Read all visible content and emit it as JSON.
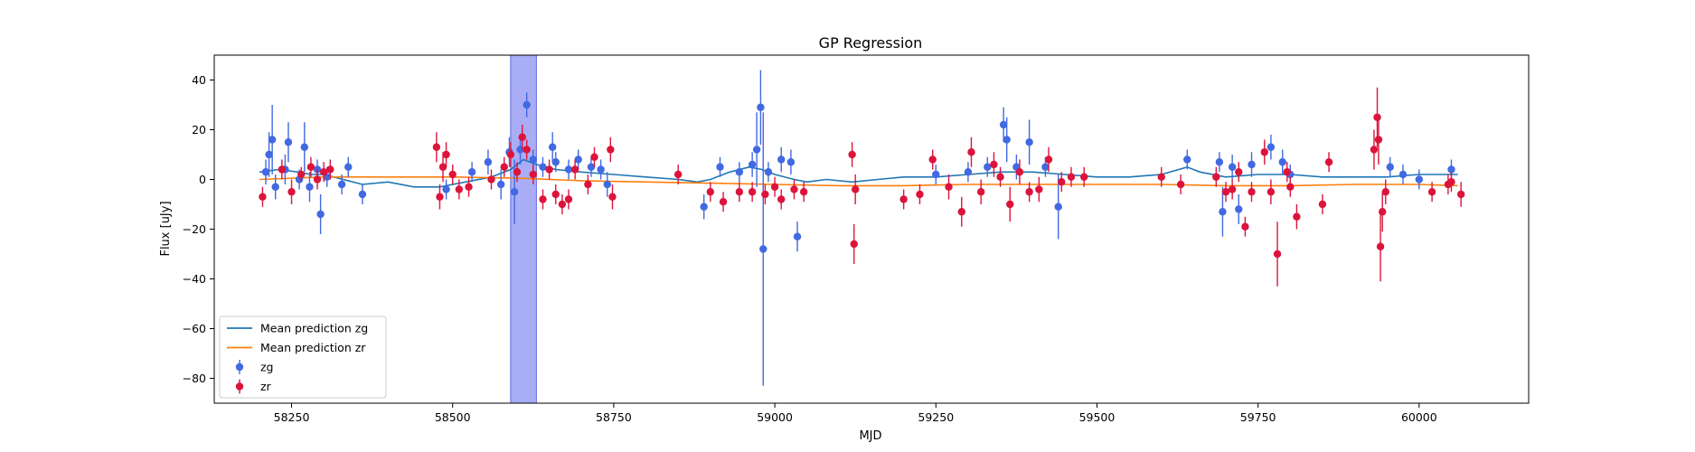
{
  "chart_data": {
    "type": "scatter",
    "title": "GP Regression",
    "xlabel": "MJD",
    "ylabel": "Flux [uJy]",
    "xlim": [
      58130,
      60170
    ],
    "ylim": [
      -90,
      50
    ],
    "x_ticks": [
      58250,
      58500,
      58750,
      59000,
      59250,
      59500,
      59750,
      60000
    ],
    "x_tick_labels": [
      "58250",
      "58500",
      "58750",
      "59000",
      "59250",
      "59500",
      "59750",
      "60000"
    ],
    "y_ticks": [
      40,
      20,
      0,
      -20,
      -40,
      -60,
      -80
    ],
    "y_tick_labels": [
      "40",
      "20",
      "0",
      "−20",
      "−40",
      "−60",
      "−80"
    ],
    "grid": false,
    "legend_position": "lower-left",
    "highlight_span": {
      "x0": 58590,
      "x1": 58630,
      "color": "#a5a9f5"
    },
    "lines": [
      {
        "name": "Mean prediction zg",
        "color": "#1f77b4",
        "x": [
          58200,
          58230,
          58260,
          58280,
          58300,
          58330,
          58360,
          58400,
          58440,
          58480,
          58520,
          58560,
          58590,
          58610,
          58630,
          58660,
          58700,
          58750,
          58800,
          58850,
          58880,
          58900,
          58930,
          58960,
          58980,
          59000,
          59030,
          59050,
          59080,
          59120,
          59160,
          59200,
          59250,
          59300,
          59350,
          59400,
          59450,
          59500,
          59550,
          59600,
          59640,
          59660,
          59700,
          59750,
          59800,
          59850,
          59900,
          59950,
          60000,
          60060
        ],
        "y": [
          3,
          4,
          3,
          2,
          2,
          0,
          -2,
          -1,
          -3,
          -3,
          -1,
          1,
          4,
          8,
          6,
          4,
          3,
          2,
          1,
          0,
          -1,
          0,
          3,
          5,
          4,
          2,
          0,
          -1,
          0,
          -1,
          0,
          1,
          1,
          2,
          3,
          3,
          2,
          1,
          1,
          2,
          5,
          3,
          1,
          2,
          2,
          1,
          1,
          1,
          2,
          2
        ]
      },
      {
        "name": "Mean prediction zr",
        "color": "#ff7f0e",
        "x": [
          58200,
          58300,
          58400,
          58500,
          58600,
          58700,
          58800,
          58900,
          59000,
          59100,
          59200,
          59300,
          59400,
          59500,
          59600,
          59700,
          59800,
          59900,
          60000,
          60060
        ],
        "y": [
          0,
          1,
          1,
          1,
          0.5,
          -0.5,
          -1,
          -1.5,
          -2,
          -2.5,
          -2.5,
          -2,
          -2,
          -2,
          -2,
          -2.5,
          -2.5,
          -2,
          -2,
          -2.5
        ]
      }
    ],
    "series": [
      {
        "name": "zg",
        "color": "#4169e1",
        "points": [
          [
            58210,
            3,
            5
          ],
          [
            58215,
            10,
            9
          ],
          [
            58220,
            16,
            14
          ],
          [
            58225,
            -3,
            5
          ],
          [
            58240,
            4,
            6
          ],
          [
            58245,
            15,
            8
          ],
          [
            58262,
            0,
            4
          ],
          [
            58270,
            13,
            10
          ],
          [
            58278,
            -3,
            6
          ],
          [
            58290,
            4,
            4
          ],
          [
            58295,
            -14,
            8
          ],
          [
            58305,
            1,
            4
          ],
          [
            58328,
            -2,
            4
          ],
          [
            58338,
            5,
            4
          ],
          [
            58360,
            -6,
            4
          ],
          [
            58490,
            -4,
            4
          ],
          [
            58530,
            3,
            4
          ],
          [
            58555,
            7,
            5
          ],
          [
            58575,
            -2,
            6
          ],
          [
            58588,
            11,
            6
          ],
          [
            58596,
            -5,
            13
          ],
          [
            58605,
            12,
            6
          ],
          [
            58615,
            30,
            5
          ],
          [
            58625,
            8,
            4
          ],
          [
            58640,
            5,
            4
          ],
          [
            58655,
            13,
            6
          ],
          [
            58660,
            7,
            4
          ],
          [
            58680,
            4,
            4
          ],
          [
            58695,
            8,
            4
          ],
          [
            58715,
            5,
            4
          ],
          [
            58730,
            4,
            4
          ],
          [
            58740,
            -2,
            5
          ],
          [
            58890,
            -11,
            5
          ],
          [
            58915,
            5,
            4
          ],
          [
            58945,
            3,
            4
          ],
          [
            58965,
            6,
            5
          ],
          [
            58972,
            12,
            15
          ],
          [
            58978,
            29,
            15
          ],
          [
            58982,
            -28,
            55
          ],
          [
            58990,
            3,
            4
          ],
          [
            59010,
            8,
            5
          ],
          [
            59025,
            7,
            5
          ],
          [
            59035,
            -23,
            6
          ],
          [
            59250,
            2,
            4
          ],
          [
            59300,
            3,
            4
          ],
          [
            59330,
            5,
            4
          ],
          [
            59355,
            22,
            7
          ],
          [
            59360,
            16,
            9
          ],
          [
            59375,
            5,
            5
          ],
          [
            59395,
            15,
            9
          ],
          [
            59420,
            5,
            4
          ],
          [
            59440,
            -11,
            13
          ],
          [
            59640,
            8,
            4
          ],
          [
            59690,
            7,
            4
          ],
          [
            59695,
            -13,
            10
          ],
          [
            59710,
            5,
            5
          ],
          [
            59720,
            -12,
            6
          ],
          [
            59740,
            6,
            5
          ],
          [
            59770,
            13,
            5
          ],
          [
            59788,
            7,
            5
          ],
          [
            59800,
            2,
            4
          ],
          [
            59955,
            5,
            4
          ],
          [
            59975,
            2,
            4
          ],
          [
            60000,
            0,
            4
          ],
          [
            60050,
            4,
            4
          ]
        ]
      },
      {
        "name": "zr",
        "color": "#dc143c",
        "points": [
          [
            58205,
            -7,
            4
          ],
          [
            58235,
            4,
            4
          ],
          [
            58250,
            -5,
            5
          ],
          [
            58265,
            2,
            3
          ],
          [
            58280,
            5,
            4
          ],
          [
            58290,
            0,
            4
          ],
          [
            58300,
            3,
            4
          ],
          [
            58310,
            4,
            4
          ],
          [
            58475,
            13,
            6
          ],
          [
            58480,
            -7,
            5
          ],
          [
            58485,
            5,
            6
          ],
          [
            58490,
            10,
            5
          ],
          [
            58500,
            2,
            4
          ],
          [
            58510,
            -4,
            4
          ],
          [
            58525,
            -3,
            4
          ],
          [
            58560,
            0,
            4
          ],
          [
            58580,
            5,
            4
          ],
          [
            58590,
            10,
            5
          ],
          [
            58600,
            3,
            4
          ],
          [
            58608,
            17,
            5
          ],
          [
            58615,
            12,
            4
          ],
          [
            58625,
            2,
            4
          ],
          [
            58640,
            -8,
            4
          ],
          [
            58650,
            4,
            4
          ],
          [
            58660,
            -6,
            4
          ],
          [
            58670,
            -10,
            4
          ],
          [
            58680,
            -8,
            4
          ],
          [
            58690,
            4,
            4
          ],
          [
            58710,
            -2,
            4
          ],
          [
            58720,
            9,
            4
          ],
          [
            58745,
            12,
            5
          ],
          [
            58748,
            -7,
            5
          ],
          [
            58850,
            2,
            4
          ],
          [
            58900,
            -5,
            4
          ],
          [
            58920,
            -9,
            4
          ],
          [
            58945,
            -5,
            4
          ],
          [
            58965,
            -5,
            4
          ],
          [
            58985,
            -6,
            4
          ],
          [
            59000,
            -3,
            4
          ],
          [
            59010,
            -8,
            4
          ],
          [
            59030,
            -4,
            4
          ],
          [
            59045,
            -5,
            4
          ],
          [
            59120,
            10,
            5
          ],
          [
            59123,
            -26,
            8
          ],
          [
            59125,
            -4,
            6
          ],
          [
            59200,
            -8,
            4
          ],
          [
            59225,
            -6,
            4
          ],
          [
            59245,
            8,
            4
          ],
          [
            59270,
            -3,
            5
          ],
          [
            59290,
            -13,
            6
          ],
          [
            59305,
            11,
            6
          ],
          [
            59320,
            -5,
            5
          ],
          [
            59340,
            6,
            5
          ],
          [
            59350,
            1,
            4
          ],
          [
            59365,
            -10,
            7
          ],
          [
            59380,
            3,
            5
          ],
          [
            59395,
            -5,
            4
          ],
          [
            59410,
            -4,
            5
          ],
          [
            59425,
            8,
            5
          ],
          [
            59445,
            -1,
            4
          ],
          [
            59460,
            1,
            4
          ],
          [
            59480,
            1,
            4
          ],
          [
            59600,
            1,
            4
          ],
          [
            59630,
            -2,
            4
          ],
          [
            59685,
            1,
            4
          ],
          [
            59700,
            -5,
            4
          ],
          [
            59710,
            -4,
            4
          ],
          [
            59720,
            3,
            4
          ],
          [
            59730,
            -19,
            4
          ],
          [
            59740,
            -5,
            4
          ],
          [
            59760,
            11,
            5
          ],
          [
            59770,
            -5,
            5
          ],
          [
            59780,
            -30,
            13
          ],
          [
            59795,
            3,
            4
          ],
          [
            59800,
            -3,
            4
          ],
          [
            59810,
            -15,
            5
          ],
          [
            59850,
            -10,
            4
          ],
          [
            59860,
            7,
            4
          ],
          [
            59930,
            12,
            8
          ],
          [
            59935,
            25,
            12
          ],
          [
            59937,
            16,
            10
          ],
          [
            59940,
            -27,
            14
          ],
          [
            59943,
            -13,
            8
          ],
          [
            59948,
            -5,
            5
          ],
          [
            60020,
            -5,
            4
          ],
          [
            60045,
            -2,
            4
          ],
          [
            60050,
            -1,
            4
          ],
          [
            60065,
            -6,
            5
          ]
        ]
      }
    ],
    "legend": [
      {
        "label": "Mean prediction zg",
        "kind": "line",
        "color": "#1f77b4"
      },
      {
        "label": "Mean prediction zr",
        "kind": "line",
        "color": "#ff7f0e"
      },
      {
        "label": "zg",
        "kind": "errorbar",
        "color": "#4169e1"
      },
      {
        "label": "zr",
        "kind": "errorbar",
        "color": "#dc143c"
      }
    ]
  }
}
